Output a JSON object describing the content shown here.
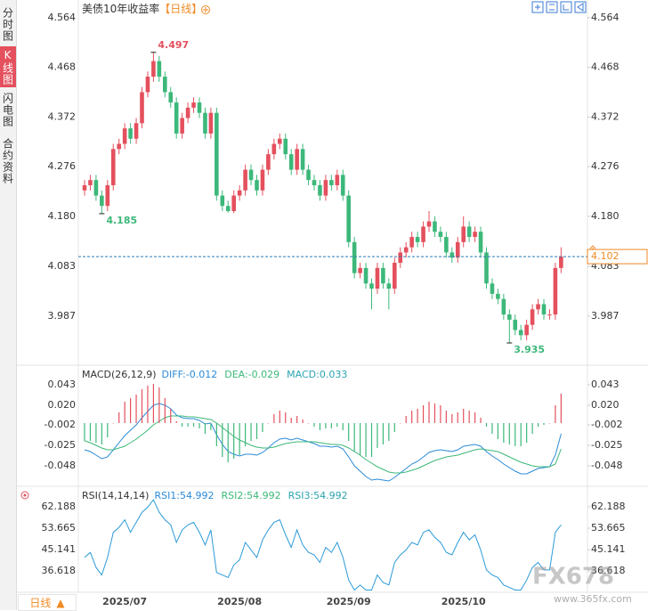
{
  "tabs": [
    "分时图",
    "K线图",
    "闪电图",
    "合约资料"
  ],
  "period_button": "日线",
  "watermark": "FX678",
  "watermark_url": "www.365fx.com",
  "chart_data": [
    {
      "type": "candlestick",
      "title": "美债10年收益率",
      "subtitle": "【日线】",
      "categories": [
        null,
        null,
        null,
        null,
        null,
        null,
        null,
        "2025/07",
        null,
        null,
        null,
        null,
        null,
        null,
        null,
        null,
        null,
        null,
        null,
        null,
        null,
        null,
        null,
        null,
        null,
        null,
        null,
        "2025/08",
        null,
        null,
        null,
        null,
        null,
        null,
        null,
        null,
        null,
        null,
        null,
        null,
        null,
        null,
        null,
        null,
        null,
        null,
        "2025/09",
        null,
        null,
        null,
        null,
        null,
        null,
        null,
        null,
        null,
        null,
        null,
        null,
        null,
        null,
        null,
        null,
        null,
        null,
        null,
        "2025/10",
        null,
        null,
        null,
        null,
        null,
        null,
        null,
        null,
        null,
        null,
        null,
        null,
        null,
        null,
        null,
        null,
        null
      ],
      "open": [
        4.23,
        4.24,
        4.25,
        4.22,
        4.2,
        4.24,
        4.31,
        4.32,
        4.35,
        4.33,
        4.36,
        4.42,
        4.45,
        4.48,
        4.45,
        4.42,
        4.4,
        4.34,
        4.37,
        4.39,
        4.4,
        4.38,
        4.34,
        4.38,
        4.22,
        4.2,
        4.19,
        4.22,
        4.23,
        4.27,
        4.25,
        4.23,
        4.27,
        4.3,
        4.32,
        4.33,
        4.3,
        4.27,
        4.31,
        4.27,
        4.25,
        4.24,
        4.22,
        4.25,
        4.24,
        4.26,
        4.22,
        4.13,
        4.07,
        4.08,
        4.05,
        4.04,
        4.08,
        4.05,
        4.04,
        4.09,
        4.11,
        4.12,
        4.14,
        4.13,
        4.16,
        4.17,
        4.15,
        4.14,
        4.11,
        4.1,
        4.13,
        4.16,
        4.14,
        4.15,
        4.11,
        4.05,
        4.03,
        4.02,
        3.99,
        3.98,
        3.96,
        3.95,
        3.97,
        4.0,
        4.01,
        3.99,
        3.99,
        4.08
      ],
      "high": [
        4.25,
        4.26,
        4.26,
        4.23,
        4.25,
        4.32,
        4.33,
        4.36,
        4.36,
        4.37,
        4.43,
        4.46,
        4.497,
        4.49,
        4.46,
        4.43,
        4.41,
        4.38,
        4.4,
        4.41,
        4.41,
        4.39,
        4.39,
        4.39,
        4.23,
        4.21,
        4.23,
        4.24,
        4.28,
        4.28,
        4.26,
        4.28,
        4.31,
        4.33,
        4.34,
        4.34,
        4.31,
        4.32,
        4.32,
        4.28,
        4.26,
        4.25,
        4.26,
        4.26,
        4.27,
        4.27,
        4.23,
        4.14,
        4.09,
        4.09,
        4.06,
        4.09,
        4.09,
        4.06,
        4.1,
        4.12,
        4.13,
        4.15,
        4.15,
        4.17,
        4.19,
        4.18,
        4.16,
        4.15,
        4.12,
        4.14,
        4.18,
        4.17,
        4.16,
        4.16,
        4.12,
        4.06,
        4.04,
        4.03,
        4.0,
        3.99,
        3.97,
        3.98,
        4.01,
        4.02,
        4.02,
        4.0,
        4.09,
        4.12
      ],
      "low": [
        4.22,
        4.23,
        4.21,
        4.185,
        4.19,
        4.23,
        4.3,
        4.31,
        4.32,
        4.32,
        4.35,
        4.41,
        4.44,
        4.44,
        4.41,
        4.39,
        4.33,
        4.33,
        4.36,
        4.38,
        4.37,
        4.33,
        4.33,
        4.21,
        4.19,
        4.187,
        4.186,
        4.21,
        4.22,
        4.24,
        4.22,
        4.22,
        4.26,
        4.29,
        4.31,
        4.29,
        4.26,
        4.26,
        4.26,
        4.24,
        4.23,
        4.21,
        4.21,
        4.23,
        4.23,
        4.21,
        4.12,
        4.06,
        4.06,
        4.04,
        4.0,
        4.03,
        4.04,
        4.0,
        4.03,
        4.08,
        4.1,
        4.11,
        4.12,
        4.12,
        4.15,
        4.14,
        4.13,
        4.1,
        4.09,
        4.09,
        4.12,
        4.13,
        4.13,
        4.1,
        4.04,
        4.02,
        4.01,
        3.98,
        3.935,
        3.95,
        3.94,
        3.94,
        3.96,
        3.99,
        3.98,
        3.98,
        3.98,
        4.07
      ],
      "close": [
        4.24,
        4.25,
        4.22,
        4.2,
        4.24,
        4.31,
        4.32,
        4.35,
        4.33,
        4.36,
        4.42,
        4.45,
        4.48,
        4.45,
        4.42,
        4.4,
        4.34,
        4.37,
        4.39,
        4.4,
        4.38,
        4.34,
        4.38,
        4.22,
        4.2,
        4.19,
        4.22,
        4.23,
        4.27,
        4.25,
        4.23,
        4.27,
        4.3,
        4.32,
        4.33,
        4.3,
        4.27,
        4.31,
        4.27,
        4.25,
        4.24,
        4.22,
        4.25,
        4.24,
        4.26,
        4.22,
        4.13,
        4.07,
        4.08,
        4.05,
        4.04,
        4.08,
        4.05,
        4.04,
        4.09,
        4.11,
        4.12,
        4.14,
        4.13,
        4.16,
        4.17,
        4.15,
        4.14,
        4.11,
        4.1,
        4.13,
        4.16,
        4.14,
        4.15,
        4.11,
        4.05,
        4.03,
        4.02,
        3.99,
        3.98,
        3.96,
        3.95,
        3.97,
        4.0,
        4.01,
        3.99,
        3.99,
        4.08,
        4.102
      ],
      "up_color": "#e4505d",
      "down_color": "#3cb87a",
      "last_price_color": "#2a7ab8",
      "label_color": "#f08a24",
      "ylim": [
        3.892,
        4.581
      ],
      "yticks": [
        4.564,
        4.468,
        4.372,
        4.276,
        {
          "value": 4.18,
          "label": "4.180"
        },
        4.083,
        3.987
      ]
    },
    {
      "type": "macd",
      "title": "MACD(26,12,9)",
      "legend": [
        {
          "text": "DIFF:-0.012",
          "color": "#2b8ad8"
        },
        {
          "text": "DEA:-0.029",
          "color": "#3cb878"
        },
        {
          "text": "MACD:0.033",
          "color": "#2aa3b0"
        }
      ],
      "series": [
        {
          "style": "line",
          "color": "#2b8ad8",
          "values": [
            -0.03,
            -0.032,
            -0.036,
            -0.04,
            -0.038,
            -0.03,
            -0.022,
            -0.014,
            -0.008,
            -0.002,
            0.006,
            0.013,
            0.02,
            0.022,
            0.02,
            0.016,
            0.009,
            0.006,
            0.005,
            0.005,
            0.003,
            -0.001,
            0.0,
            -0.013,
            -0.024,
            -0.032,
            -0.035,
            -0.037,
            -0.035,
            -0.035,
            -0.036,
            -0.033,
            -0.028,
            -0.022,
            -0.018,
            -0.017,
            -0.019,
            -0.017,
            -0.019,
            -0.021,
            -0.023,
            -0.026,
            -0.026,
            -0.027,
            -0.026,
            -0.029,
            -0.038,
            -0.048,
            -0.054,
            -0.06,
            -0.064,
            -0.063,
            -0.064,
            -0.065,
            -0.061,
            -0.056,
            -0.051,
            -0.046,
            -0.043,
            -0.038,
            -0.033,
            -0.031,
            -0.03,
            -0.031,
            -0.032,
            -0.03,
            -0.026,
            -0.025,
            -0.024,
            -0.026,
            -0.032,
            -0.037,
            -0.041,
            -0.046,
            -0.05,
            -0.054,
            -0.057,
            -0.057,
            -0.054,
            -0.051,
            -0.05,
            -0.049,
            -0.036,
            -0.012
          ]
        },
        {
          "style": "line",
          "color": "#3cb878",
          "values": [
            -0.02,
            -0.022,
            -0.025,
            -0.028,
            -0.03,
            -0.03,
            -0.028,
            -0.026,
            -0.022,
            -0.018,
            -0.013,
            -0.008,
            -0.002,
            0.002,
            0.006,
            0.008,
            0.008,
            0.008,
            0.007,
            0.007,
            0.006,
            0.005,
            0.004,
            0.0,
            -0.005,
            -0.01,
            -0.015,
            -0.019,
            -0.022,
            -0.025,
            -0.027,
            -0.028,
            -0.028,
            -0.027,
            -0.025,
            -0.023,
            -0.022,
            -0.021,
            -0.021,
            -0.021,
            -0.021,
            -0.022,
            -0.023,
            -0.024,
            -0.024,
            -0.025,
            -0.028,
            -0.032,
            -0.036,
            -0.041,
            -0.045,
            -0.049,
            -0.052,
            -0.055,
            -0.056,
            -0.056,
            -0.055,
            -0.053,
            -0.051,
            -0.048,
            -0.045,
            -0.042,
            -0.04,
            -0.038,
            -0.037,
            -0.036,
            -0.034,
            -0.032,
            -0.03,
            -0.029,
            -0.03,
            -0.031,
            -0.032,
            -0.035,
            -0.038,
            -0.041,
            -0.044,
            -0.046,
            -0.048,
            -0.049,
            -0.049,
            -0.049,
            -0.046,
            -0.029
          ]
        },
        {
          "style": "bar",
          "values": [
            -0.02,
            -0.02,
            -0.022,
            -0.024,
            -0.016,
            0.0,
            0.012,
            0.024,
            0.028,
            0.032,
            0.038,
            0.042,
            0.044,
            0.04,
            0.028,
            0.016,
            0.002,
            -0.004,
            -0.004,
            -0.004,
            -0.006,
            -0.012,
            -0.008,
            -0.026,
            -0.038,
            -0.044,
            -0.04,
            -0.036,
            -0.026,
            -0.02,
            -0.018,
            -0.01,
            0.0,
            0.01,
            0.014,
            0.012,
            0.006,
            0.008,
            0.004,
            0.0,
            -0.004,
            -0.008,
            -0.006,
            -0.006,
            -0.004,
            -0.008,
            -0.02,
            -0.032,
            -0.036,
            -0.038,
            -0.038,
            -0.028,
            -0.024,
            -0.02,
            -0.01,
            0.0,
            0.008,
            0.014,
            0.016,
            0.02,
            0.024,
            0.022,
            0.02,
            0.014,
            0.01,
            0.012,
            0.016,
            0.014,
            0.012,
            0.006,
            -0.004,
            -0.012,
            -0.018,
            -0.022,
            -0.024,
            -0.026,
            -0.026,
            -0.022,
            -0.012,
            -0.004,
            -0.002,
            0.0,
            0.02,
            0.033
          ]
        }
      ],
      "up_color": "#e4505d",
      "down_color": "#3cb87a",
      "ylim": [
        -0.07,
        0.063
      ],
      "yticks": [
        0.043,
        {
          "value": 0.02,
          "label": "0.020"
        },
        -0.002,
        -0.025,
        -0.048
      ]
    },
    {
      "type": "line",
      "title": "RSI(14,14,14)",
      "legend": [
        {
          "text": "RSI1:54.992",
          "color": "#2b8ad8"
        },
        {
          "text": "RSI2:54.992",
          "color": "#3cb878"
        },
        {
          "text": "RSI3:54.992",
          "color": "#2aa3b0"
        }
      ],
      "series": [
        {
          "style": "line",
          "color": "#2b9ad8",
          "values": [
            42,
            44,
            38,
            35,
            42,
            52,
            54,
            57,
            52,
            56,
            60,
            62,
            65,
            60,
            57,
            55,
            48,
            53,
            55,
            56,
            52,
            47,
            53,
            36,
            35,
            34,
            39,
            41,
            48,
            45,
            42,
            49,
            53,
            56,
            57,
            51,
            46,
            53,
            47,
            44,
            43,
            40,
            46,
            44,
            48,
            42,
            33,
            29,
            31,
            29,
            29,
            35,
            32,
            31,
            40,
            43,
            45,
            48,
            47,
            52,
            53,
            50,
            48,
            44,
            43,
            48,
            52,
            49,
            51,
            45,
            37,
            35,
            34,
            31,
            30,
            29,
            29,
            33,
            38,
            40,
            37,
            37,
            52,
            54.992
          ]
        }
      ],
      "ylim": [
        28.1,
        69.65
      ],
      "yticks": [
        62.188,
        53.665,
        45.141,
        36.618
      ]
    }
  ]
}
